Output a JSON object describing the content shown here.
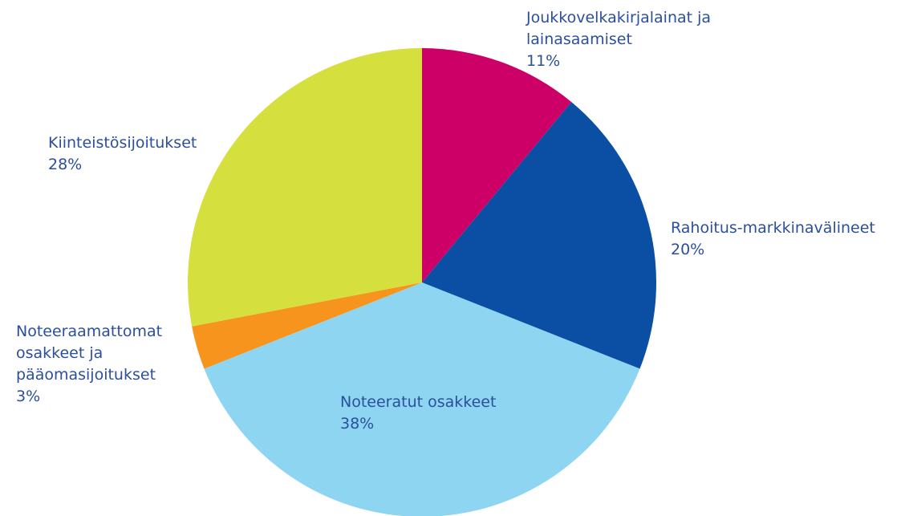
{
  "chart_data": {
    "type": "pie",
    "title": "",
    "start_angle_deg": 0,
    "direction": "clockwise",
    "slices": [
      {
        "label_lines": [
          "Joukkovelkakirjalainat ja",
          "lainasaamiset"
        ],
        "value": 11,
        "value_label": "11%",
        "color": "#cc0066",
        "icon": "pie-slice"
      },
      {
        "label_lines": [
          "Rahoitus-markkinavälineet"
        ],
        "value": 20,
        "value_label": "20%",
        "color": "#0a4fa3",
        "icon": "pie-slice"
      },
      {
        "label_lines": [
          "Noteeratut osakkeet"
        ],
        "value": 38,
        "value_label": "38%",
        "color": "#8ed5f2",
        "icon": "pie-slice"
      },
      {
        "label_lines": [
          "Noteeraamattomat",
          "osakkeet  ja",
          "pääomasijoitukset"
        ],
        "value": 3,
        "value_label": "3%",
        "color": "#f7941d",
        "icon": "pie-slice"
      },
      {
        "label_lines": [
          "Kiinteistösijoitukset"
        ],
        "value": 28,
        "value_label": "28%",
        "color": "#d5df3e",
        "icon": "pie-slice"
      }
    ]
  }
}
